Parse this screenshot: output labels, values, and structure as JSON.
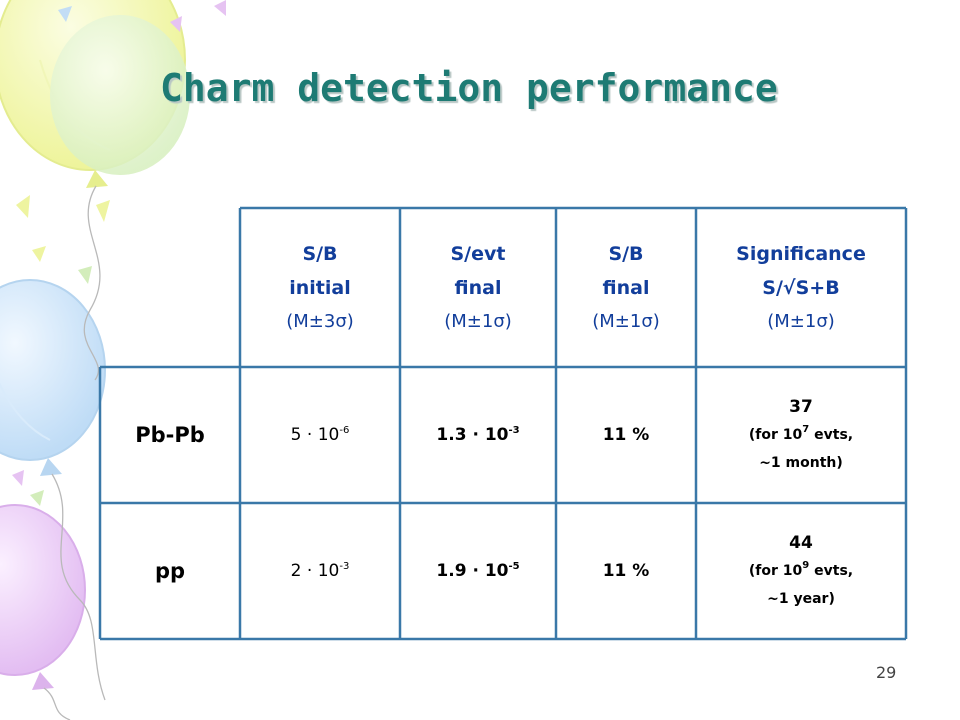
{
  "slide": {
    "title": "Charm detection performance",
    "page_number": "29"
  },
  "table": {
    "headers": [
      {
        "line1": "S/B",
        "line2": "initial",
        "line3": "(M±3σ)"
      },
      {
        "line1": "S/evt",
        "line2": "final",
        "line3": "(M±1σ)"
      },
      {
        "line1": "S/B",
        "line2": "final",
        "line3": "(M±1σ)"
      },
      {
        "line1": "Significance",
        "line2": "S/√S+B",
        "line3": "(M±1σ)"
      }
    ],
    "rows": [
      {
        "label": "Pb-Pb",
        "sb_initial": {
          "mantissa": "5 · 10",
          "exponent": "-6"
        },
        "s_evt_final": {
          "mantissa": "1.3 · 10",
          "exponent": "-3"
        },
        "sb_final": "11 %",
        "significance": {
          "value": "37",
          "note_pre": "(for 10",
          "note_exp": "7",
          "note_post": " evts,",
          "note_line2": "~1 month)"
        }
      },
      {
        "label": "pp",
        "sb_initial": {
          "mantissa": "2 · 10",
          "exponent": "-3"
        },
        "s_evt_final": {
          "mantissa": "1.9 · 10",
          "exponent": "-5"
        },
        "sb_final": "11 %",
        "significance": {
          "value": "44",
          "note_pre": "(for 10",
          "note_exp": "9",
          "note_post": " evts,",
          "note_line2": "~1 year)"
        }
      }
    ]
  },
  "colors": {
    "title": "#1e7b74",
    "header_text": "#123e9b",
    "table_border": "#3a78a8"
  }
}
